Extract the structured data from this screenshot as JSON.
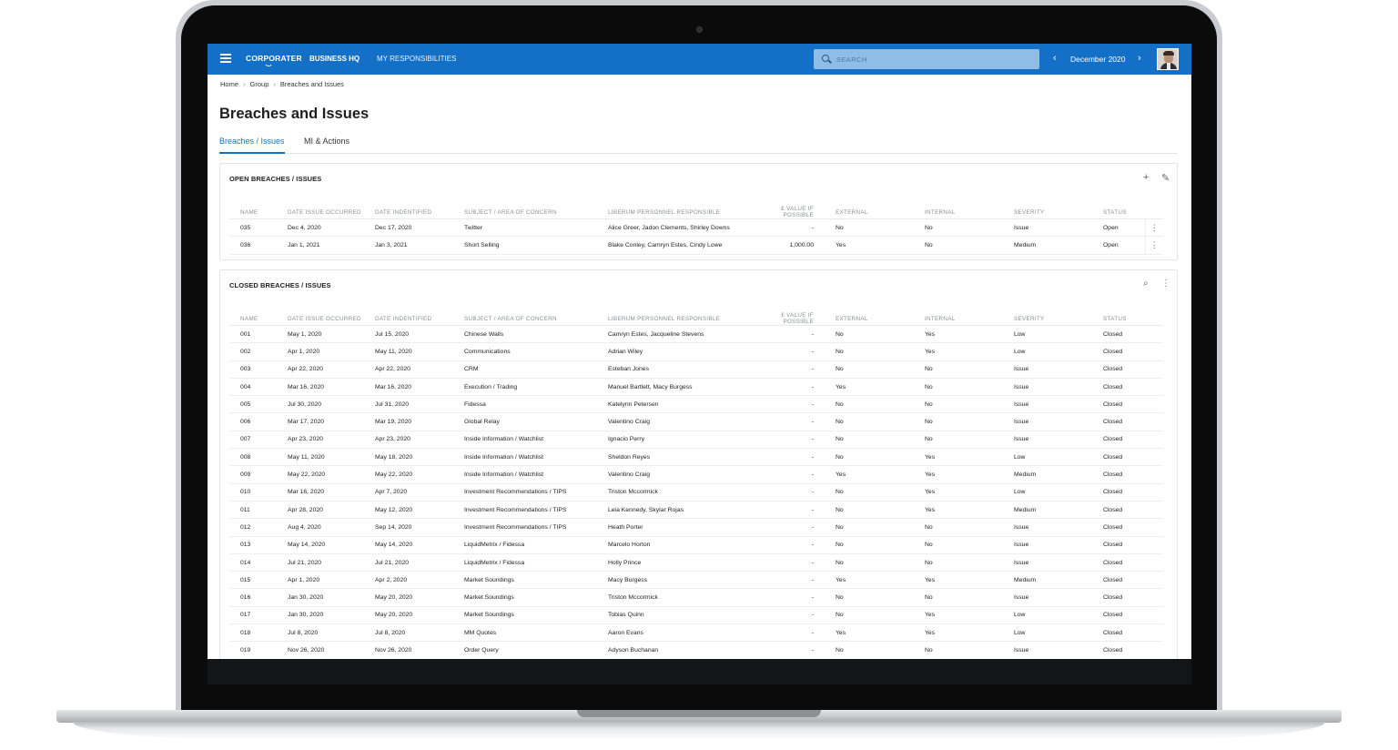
{
  "app": {
    "brand": "CORPORATER",
    "nav": [
      "BUSINESS HQ",
      "MY RESPONSIBILITIES"
    ],
    "search_placeholder": "SEARCH",
    "period": "December 2020"
  },
  "breadcrumb": [
    "Home",
    "Group",
    "Breaches and Issues"
  ],
  "page_title": "Breaches and Issues",
  "tabs": [
    "Breaches / Issues",
    "MI & Actions"
  ],
  "columns": [
    "NAME",
    "DATE ISSUE OCCURRED",
    "DATE INDENTIFIED",
    "SUBJECT / AREA OF CONCERN",
    "LIBERUM PERSONNEL RESPONSIBLE",
    "£ VALUE IF POSSIBLE",
    "EXTERNAL",
    "INTERNAL",
    "SEVERITY",
    "STATUS"
  ],
  "open_section": {
    "title": "OPEN BREACHES / ISSUES",
    "rows": [
      [
        "035",
        "Dec 4, 2020",
        "Dec 17, 2020",
        "Twitter",
        "Alice Greer, Jadon Clements, Shirley Downs",
        "-",
        "No",
        "No",
        "Issue",
        "Open"
      ],
      [
        "036",
        "Jan 1, 2021",
        "Jan 3, 2021",
        "Short Selling",
        "Blake Conley, Camryn Estes, Cindy Lowe",
        "1,000.00",
        "Yes",
        "No",
        "Medium",
        "Open"
      ]
    ]
  },
  "closed_section": {
    "title": "CLOSED BREACHES / ISSUES",
    "rows": [
      [
        "001",
        "May 1, 2020",
        "Jul 15, 2020",
        "Chinese Walls",
        "Camryn Estes, Jacqueline Stevens",
        "-",
        "No",
        "Yes",
        "Low",
        "Closed"
      ],
      [
        "002",
        "Apr 1, 2020",
        "May 11, 2020",
        "Communications",
        "Adrian Wiley",
        "-",
        "No",
        "Yes",
        "Low",
        "Closed"
      ],
      [
        "003",
        "Apr 22, 2020",
        "Apr 22, 2020",
        "CRM",
        "Esteban Jones",
        "-",
        "No",
        "No",
        "Issue",
        "Closed"
      ],
      [
        "004",
        "Mar 16, 2020",
        "Mar 16, 2020",
        "Execution / Trading",
        "Manuel Bartlett, Macy Burgess",
        "-",
        "Yes",
        "No",
        "Issue",
        "Closed"
      ],
      [
        "005",
        "Jul 30, 2020",
        "Jul 31, 2020",
        "Fidessa",
        "Katelynn Petersen",
        "-",
        "No",
        "No",
        "Issue",
        "Closed"
      ],
      [
        "006",
        "Mar 17, 2020",
        "Mar 19, 2020",
        "Global Relay",
        "Valentino Craig",
        "-",
        "No",
        "No",
        "Issue",
        "Closed"
      ],
      [
        "007",
        "Apr 23, 2020",
        "Apr 23, 2020",
        "Inside Information / Watchlist",
        "Ignacio Perry",
        "-",
        "No",
        "No",
        "Issue",
        "Closed"
      ],
      [
        "008",
        "May 11, 2020",
        "May 18, 2020",
        "Inside Information / Watchlist",
        "Sheldon Reyes",
        "-",
        "No",
        "Yes",
        "Low",
        "Closed"
      ],
      [
        "009",
        "May 22, 2020",
        "May 22, 2020",
        "Inside Information / Watchlist",
        "Valentino Craig",
        "-",
        "Yes",
        "Yes",
        "Medium",
        "Closed"
      ],
      [
        "010",
        "Mar 16, 2020",
        "Apr 7, 2020",
        "Investment Recommendations / TIPS",
        "Triston Mccormick",
        "-",
        "No",
        "Yes",
        "Low",
        "Closed"
      ],
      [
        "011",
        "Apr 28, 2020",
        "May 12, 2020",
        "Investment Recommendations / TIPS",
        "Leia Kennedy, Skylar Rojas",
        "-",
        "No",
        "Yes",
        "Medium",
        "Closed"
      ],
      [
        "012",
        "Aug 4, 2020",
        "Sep 14, 2020",
        "Investment Recommendations / TIPS",
        "Heath Porter",
        "-",
        "No",
        "No",
        "Issue",
        "Closed"
      ],
      [
        "013",
        "May 14, 2020",
        "May 14, 2020",
        "LiquidMetrix / Fidessa",
        "Marcelo Horton",
        "-",
        "No",
        "No",
        "Issue",
        "Closed"
      ],
      [
        "014",
        "Jul 21, 2020",
        "Jul 21, 2020",
        "LiquidMetrix / Fidessa",
        "Holly Prince",
        "-",
        "No",
        "No",
        "Issue",
        "Closed"
      ],
      [
        "015",
        "Apr 1, 2020",
        "Apr 2, 2020",
        "Market Soundings",
        "Macy Burgess",
        "-",
        "Yes",
        "Yes",
        "Medium",
        "Closed"
      ],
      [
        "016",
        "Jan 30, 2020",
        "May 20, 2020",
        "Market Soundings",
        "Triston Mccormick",
        "-",
        "No",
        "No",
        "Issue",
        "Closed"
      ],
      [
        "017",
        "Jan 30, 2020",
        "May 20, 2020",
        "Market Soundings",
        "Tobias Quinn",
        "-",
        "No",
        "Yes",
        "Low",
        "Closed"
      ],
      [
        "018",
        "Jul 8, 2020",
        "Jul 8, 2020",
        "MM Quotes",
        "Aaron Evans",
        "-",
        "Yes",
        "Yes",
        "Low",
        "Closed"
      ],
      [
        "019",
        "Nov 26, 2020",
        "Nov 26, 2020",
        "Order Query",
        "Adyson Buchanan",
        "-",
        "No",
        "No",
        "Issue",
        "Closed"
      ]
    ]
  }
}
